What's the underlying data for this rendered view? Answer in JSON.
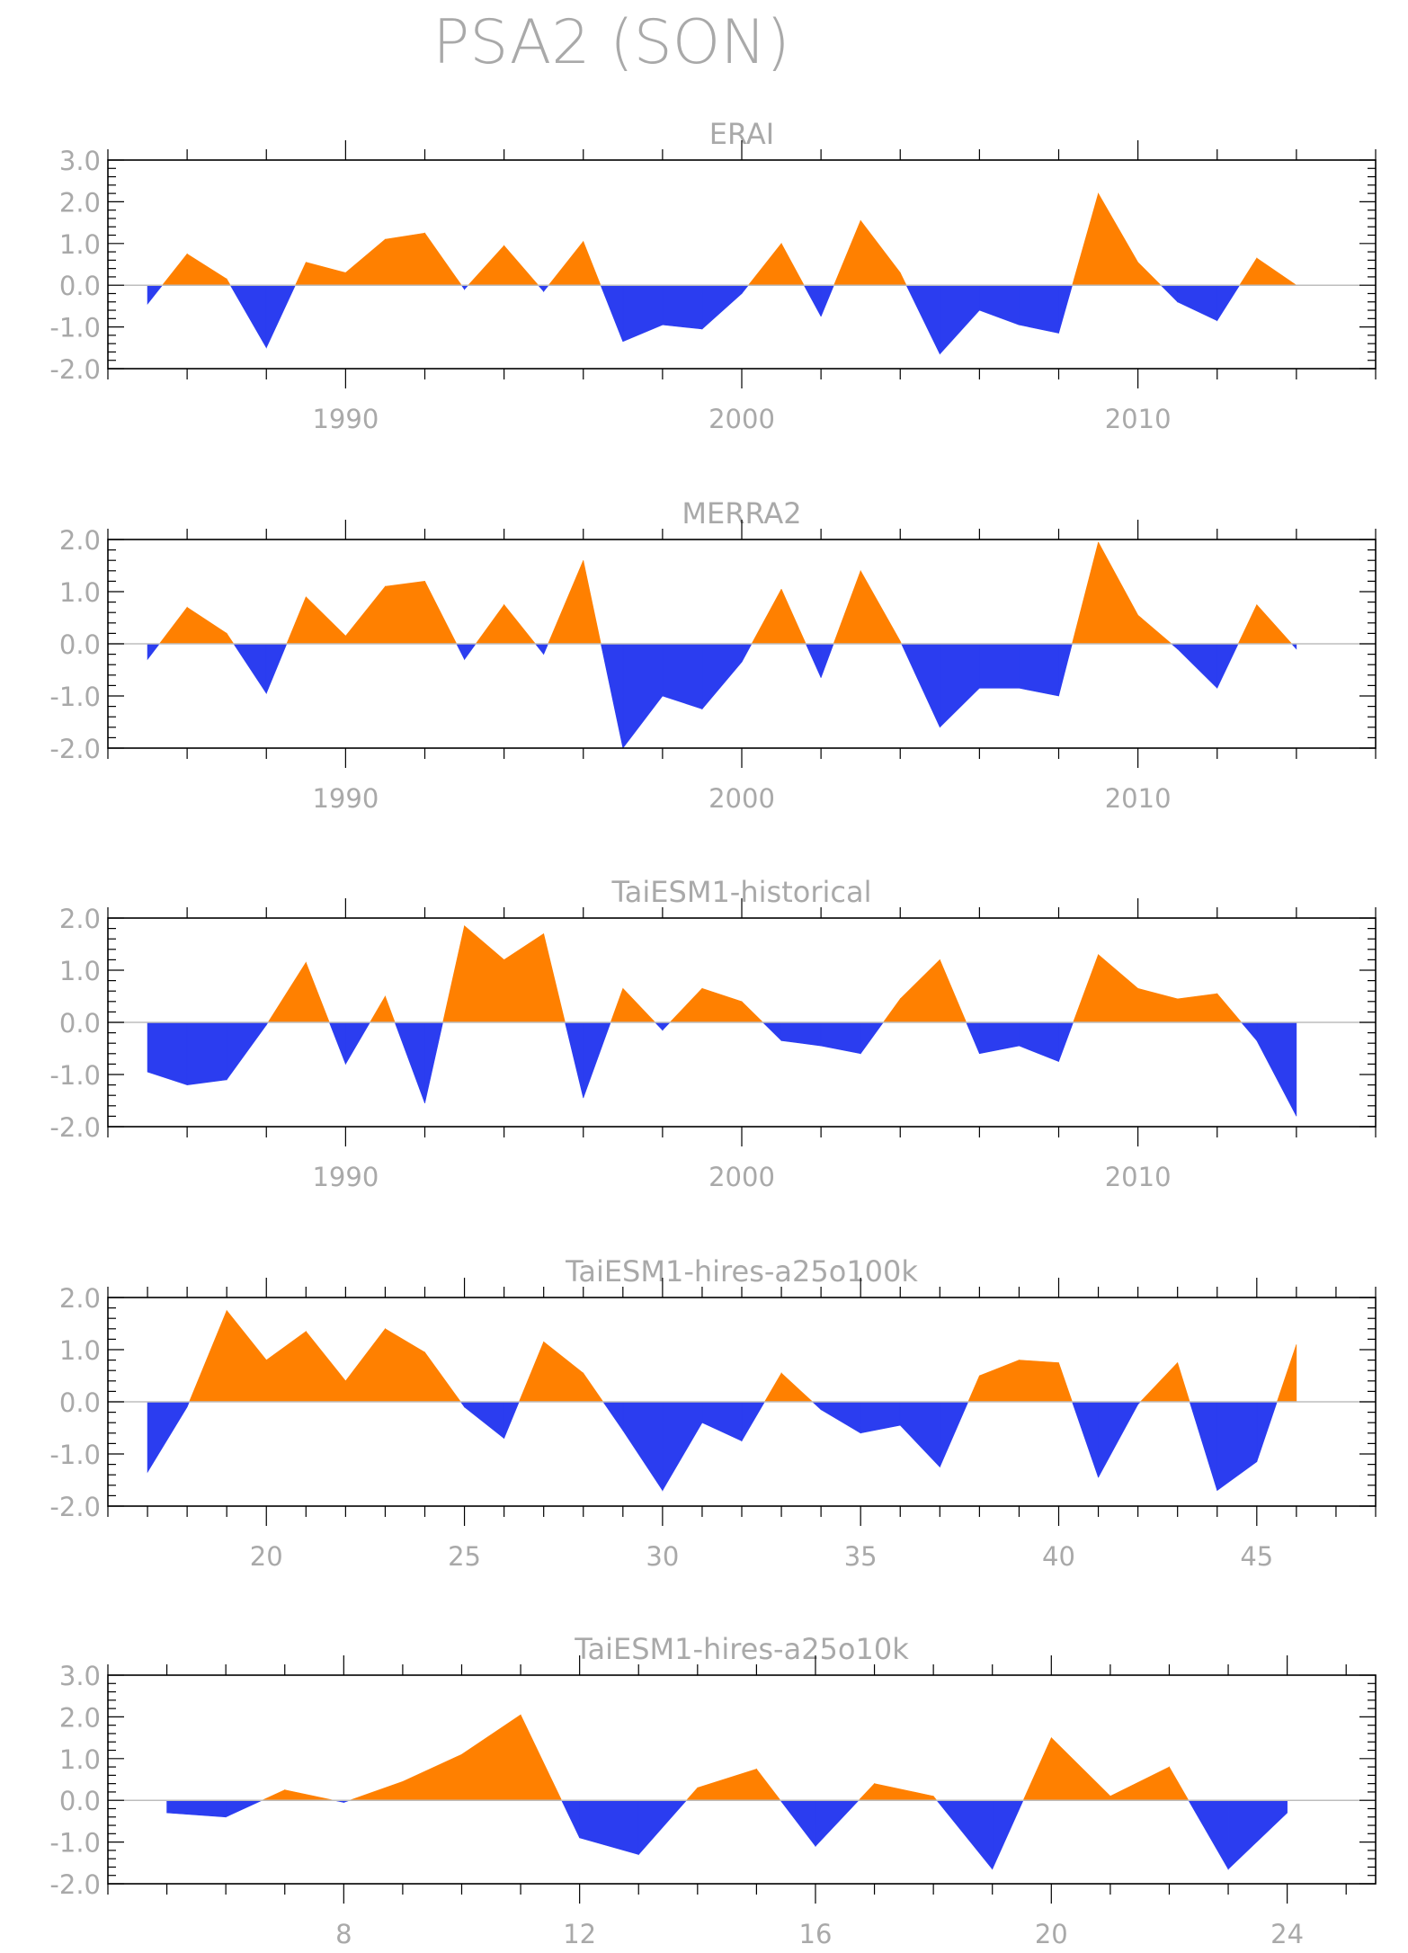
{
  "title": "PSA2 (SON)",
  "colors": {
    "positive": "#ff8000",
    "negative": "#2b3df0",
    "axis": "#000000",
    "text": "#a9a9a9",
    "zero_line": "#bdbdbd"
  },
  "chart_data": [
    {
      "type": "area",
      "title": "ERAI",
      "xlabel": "",
      "ylabel": "",
      "xlim": [
        1984,
        2016
      ],
      "ylim": [
        -2.0,
        3.0
      ],
      "x_major_ticks": [
        1990,
        2000,
        2010
      ],
      "x_tick_labels": [
        "1990",
        "2000",
        "2010"
      ],
      "y_ticks": [
        -2,
        -1,
        0,
        1,
        2,
        3
      ],
      "y_tick_labels": [
        "-2.0",
        "-1.0",
        "0.0",
        "1.0",
        "2.0",
        "3.0"
      ],
      "x": [
        1985,
        1986,
        1987,
        1988,
        1989,
        1990,
        1991,
        1992,
        1993,
        1994,
        1995,
        1996,
        1997,
        1998,
        1999,
        2000,
        2001,
        2002,
        2003,
        2004,
        2005,
        2006,
        2007,
        2008,
        2009,
        2010,
        2011,
        2012,
        2013,
        2014
      ],
      "values": [
        -0.45,
        0.75,
        0.15,
        -1.5,
        0.55,
        0.3,
        1.1,
        1.25,
        -0.1,
        0.95,
        -0.15,
        1.05,
        -1.35,
        -0.95,
        -1.05,
        -0.2,
        1.0,
        -0.75,
        1.55,
        0.3,
        -1.65,
        -0.6,
        -0.95,
        -1.15,
        2.2,
        0.55,
        -0.4,
        -0.85,
        0.65,
        0.0
      ]
    },
    {
      "type": "area",
      "title": "MERRA2",
      "xlabel": "",
      "ylabel": "",
      "xlim": [
        1984,
        2016
      ],
      "ylim": [
        -2.0,
        2.0
      ],
      "x_major_ticks": [
        1990,
        2000,
        2010
      ],
      "x_tick_labels": [
        "1990",
        "2000",
        "2010"
      ],
      "y_ticks": [
        -2,
        -1,
        0,
        1,
        2
      ],
      "y_tick_labels": [
        "-2.0",
        "-1.0",
        "0.0",
        "1.0",
        "2.0"
      ],
      "x": [
        1985,
        1986,
        1987,
        1988,
        1989,
        1990,
        1991,
        1992,
        1993,
        1994,
        1995,
        1996,
        1997,
        1998,
        1999,
        2000,
        2001,
        2002,
        2003,
        2004,
        2005,
        2006,
        2007,
        2008,
        2009,
        2010,
        2011,
        2012,
        2013,
        2014
      ],
      "values": [
        -0.3,
        0.7,
        0.2,
        -0.95,
        0.9,
        0.15,
        1.1,
        1.2,
        -0.3,
        0.75,
        -0.2,
        1.6,
        -2.0,
        -1.0,
        -1.25,
        -0.35,
        1.05,
        -0.65,
        1.4,
        0.05,
        -1.6,
        -0.85,
        -0.85,
        -1.0,
        1.95,
        0.55,
        -0.1,
        -0.85,
        0.75,
        -0.1
      ]
    },
    {
      "type": "area",
      "title": "TaiESM1-historical",
      "xlabel": "",
      "ylabel": "",
      "xlim": [
        1984,
        2016
      ],
      "ylim": [
        -2.0,
        2.0
      ],
      "x_major_ticks": [
        1990,
        2000,
        2010
      ],
      "x_tick_labels": [
        "1990",
        "2000",
        "2010"
      ],
      "y_ticks": [
        -2,
        -1,
        0,
        1,
        2
      ],
      "y_tick_labels": [
        "-2.0",
        "-1.0",
        "0.0",
        "1.0",
        "2.0"
      ],
      "x": [
        1985,
        1986,
        1987,
        1988,
        1989,
        1990,
        1991,
        1992,
        1993,
        1994,
        1995,
        1996,
        1997,
        1998,
        1999,
        2000,
        2001,
        2002,
        2003,
        2004,
        2005,
        2006,
        2007,
        2008,
        2009,
        2010,
        2011,
        2012,
        2013,
        2014
      ],
      "values": [
        -0.95,
        -1.2,
        -1.1,
        -0.05,
        1.15,
        -0.8,
        0.5,
        -1.55,
        1.85,
        1.2,
        1.7,
        -1.45,
        0.65,
        -0.15,
        0.65,
        0.4,
        -0.35,
        -0.45,
        -0.6,
        0.45,
        1.2,
        -0.6,
        -0.45,
        -0.75,
        1.3,
        0.65,
        0.45,
        0.55,
        -0.35,
        -1.8
      ]
    },
    {
      "type": "area",
      "title": "TaiESM1-hires-a25o100k",
      "xlabel": "",
      "ylabel": "",
      "xlim": [
        16,
        48
      ],
      "ylim": [
        -2.0,
        2.0
      ],
      "x_major_ticks": [
        20,
        25,
        30,
        35,
        40,
        45
      ],
      "x_tick_labels": [
        "20",
        "25",
        "30",
        "35",
        "40",
        "45"
      ],
      "y_ticks": [
        -2,
        -1,
        0,
        1,
        2
      ],
      "y_tick_labels": [
        "-2.0",
        "-1.0",
        "0.0",
        "1.0",
        "2.0"
      ],
      "x": [
        17,
        18,
        19,
        20,
        21,
        22,
        23,
        24,
        25,
        26,
        27,
        28,
        29,
        30,
        31,
        32,
        33,
        34,
        35,
        36,
        37,
        38,
        39,
        40,
        41,
        42,
        43,
        44,
        45,
        46
      ],
      "values": [
        -1.35,
        -0.1,
        1.75,
        0.8,
        1.35,
        0.4,
        1.4,
        0.95,
        -0.1,
        -0.7,
        1.15,
        0.55,
        -0.55,
        -1.7,
        -0.4,
        -0.75,
        0.55,
        -0.15,
        -0.6,
        -0.45,
        -1.25,
        0.5,
        0.8,
        0.75,
        -1.45,
        -0.05,
        0.75,
        -1.7,
        -1.15,
        1.1
      ]
    },
    {
      "type": "area",
      "title": "TaiESM1-hires-a25o10k",
      "xlabel": "",
      "ylabel": "",
      "xlim": [
        4,
        25.5
      ],
      "ylim": [
        -2.0,
        3.0
      ],
      "x_major_ticks": [
        8,
        12,
        16,
        20,
        24
      ],
      "x_tick_labels": [
        "8",
        "12",
        "16",
        "20",
        "24"
      ],
      "y_ticks": [
        -2,
        -1,
        0,
        1,
        2,
        3
      ],
      "y_tick_labels": [
        "-2.0",
        "-1.0",
        "0.0",
        "1.0",
        "2.0",
        "3.0"
      ],
      "x": [
        5,
        6,
        7,
        8,
        9,
        10,
        11,
        12,
        13,
        14,
        15,
        16,
        17,
        18,
        19,
        20,
        21,
        22,
        23,
        24
      ],
      "values": [
        -0.3,
        -0.4,
        0.25,
        -0.05,
        0.45,
        1.1,
        2.05,
        -0.9,
        -1.3,
        0.3,
        0.75,
        -1.1,
        0.4,
        0.1,
        -1.65,
        1.5,
        0.1,
        0.8,
        -1.65,
        -0.3
      ]
    }
  ]
}
